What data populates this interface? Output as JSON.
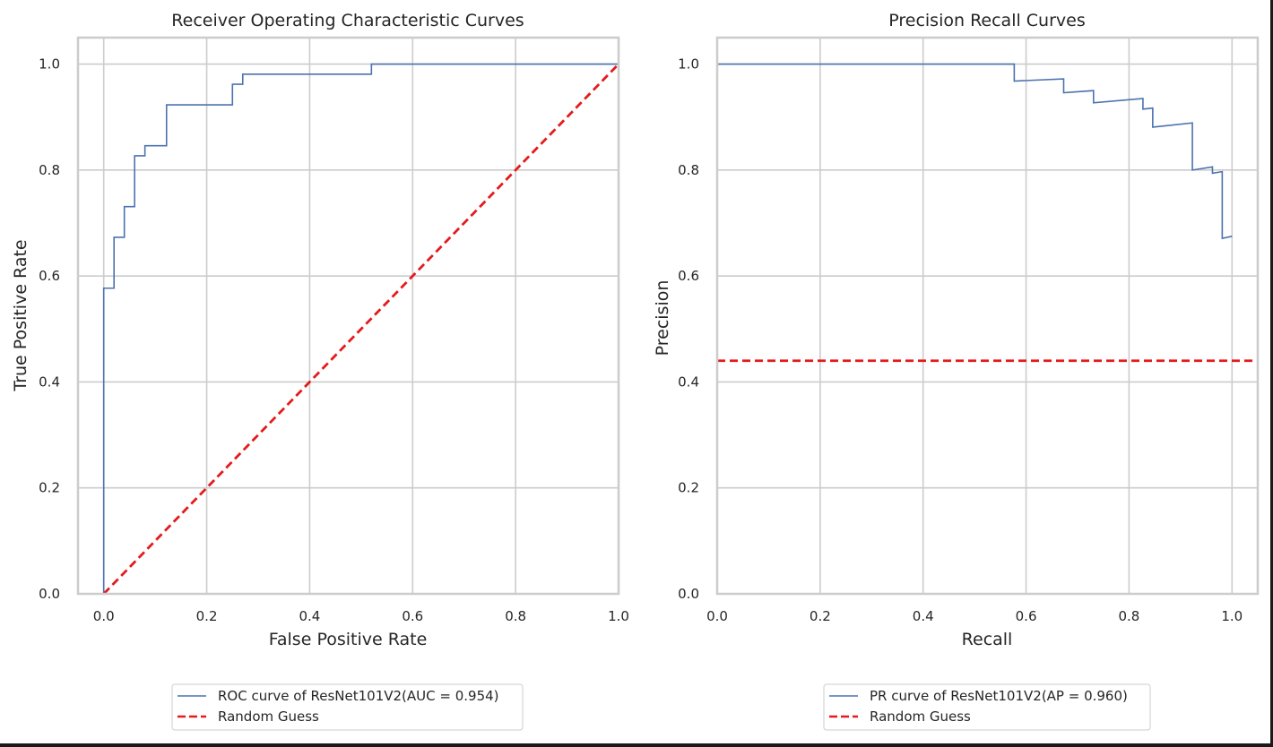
{
  "chart_data": [
    {
      "type": "line",
      "title": "Receiver Operating Characteristic Curves",
      "xlabel": "False Positive Rate",
      "ylabel": "True Positive Rate",
      "xlim": [
        -0.05,
        1.0
      ],
      "ylim": [
        0.0,
        1.05
      ],
      "xticks": [
        "0.0",
        "0.2",
        "0.4",
        "0.6",
        "0.8",
        "1.0"
      ],
      "yticks": [
        "0.0",
        "0.2",
        "0.4",
        "0.6",
        "0.8",
        "1.0"
      ],
      "grid": true,
      "legend_position": "below",
      "series": [
        {
          "name": "ROC curve of ResNet101V2(AUC = 0.954)",
          "color": "#4c72b0",
          "style": "solid",
          "x": [
            0.0,
            0.0,
            0.02,
            0.02,
            0.04,
            0.04,
            0.06,
            0.06,
            0.08,
            0.08,
            0.122,
            0.122,
            0.25,
            0.25,
            0.27,
            0.27,
            0.52,
            0.52,
            1.0
          ],
          "y": [
            0.0,
            0.577,
            0.577,
            0.673,
            0.673,
            0.731,
            0.731,
            0.827,
            0.827,
            0.846,
            0.846,
            0.923,
            0.923,
            0.962,
            0.962,
            0.981,
            0.981,
            1.0,
            1.0
          ]
        },
        {
          "name": "Random Guess",
          "color": "#e41a1c",
          "style": "dashed",
          "x": [
            0.0,
            1.0
          ],
          "y": [
            0.0,
            1.0
          ]
        }
      ]
    },
    {
      "type": "line",
      "title": "Precision Recall Curves",
      "xlabel": "Recall",
      "ylabel": "Precision",
      "xlim": [
        0.0,
        1.05
      ],
      "ylim": [
        0.0,
        1.05
      ],
      "xticks": [
        "0.0",
        "0.2",
        "0.4",
        "0.6",
        "0.8",
        "1.0"
      ],
      "yticks": [
        "0.0",
        "0.2",
        "0.4",
        "0.6",
        "0.8",
        "1.0"
      ],
      "grid": true,
      "legend_position": "below",
      "series": [
        {
          "name": "PR curve of ResNet101V2(AP = 0.960)",
          "color": "#4c72b0",
          "style": "solid",
          "x": [
            0.0,
            0.577,
            0.577,
            0.673,
            0.673,
            0.731,
            0.731,
            0.827,
            0.827,
            0.846,
            0.846,
            0.923,
            0.923,
            0.962,
            0.962,
            0.981,
            0.981,
            1.0
          ],
          "y": [
            1.0,
            1.0,
            0.968,
            0.972,
            0.946,
            0.95,
            0.927,
            0.935,
            0.915,
            0.917,
            0.881,
            0.889,
            0.8,
            0.806,
            0.794,
            0.797,
            0.671,
            0.675
          ]
        },
        {
          "name": "Random Guess",
          "color": "#e41a1c",
          "style": "dashed",
          "x": [
            0.0,
            1.05
          ],
          "y": [
            0.44,
            0.44
          ]
        }
      ]
    }
  ]
}
